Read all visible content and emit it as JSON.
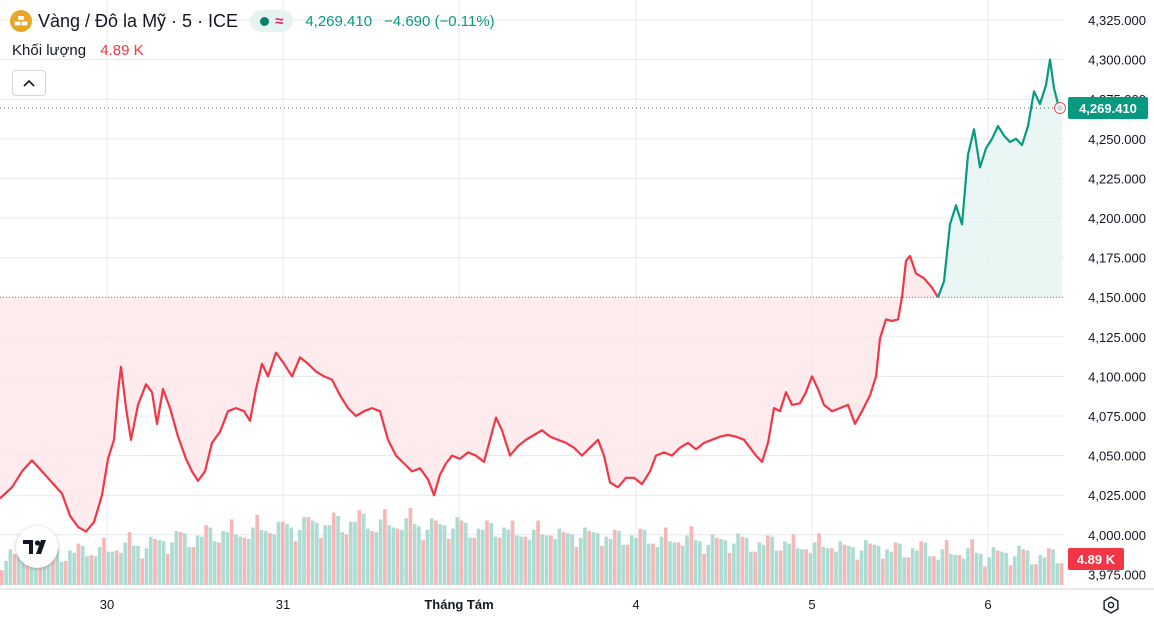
{
  "header": {
    "title": "Vàng / Đô la Mỹ · 5 · ICE",
    "price": "4,269.410",
    "change": "−4.690 (−0.11%)",
    "status_symbol": "≈"
  },
  "volume_legend": {
    "label": "Khối lượng",
    "value": "4.89 K"
  },
  "icons": {
    "symbol": "gold-bars-icon",
    "collapse": "chevron-up-icon",
    "logo": "tradingview-logo",
    "settings": "settings-icon"
  },
  "colors": {
    "up": "#089981",
    "down": "#f23645",
    "area_up": "#e6f4f1",
    "area_down": "#fde7ea",
    "grid": "#e6e8ee"
  },
  "chart_data": {
    "type": "line",
    "baseline": 4150,
    "ylim": [
      3965,
      4332
    ],
    "y_ticks": [
      "4,325.000",
      "4,300.000",
      "4,275.000",
      "4,250.000",
      "4,225.000",
      "4,200.000",
      "4,175.000",
      "4,150.000",
      "4,125.000",
      "4,100.000",
      "4,075.000",
      "4,050.000",
      "4,025.000",
      "4,000.000",
      "3,975.000"
    ],
    "x_ticks": [
      "30",
      "31",
      "Tháng Tám",
      "4",
      "5",
      "6"
    ],
    "last_price": 4269.41,
    "last_price_label": "4,269.410",
    "volume_label": "4.89 K",
    "series": [
      {
        "points": [
          [
            0,
            4023
          ],
          [
            12,
            4030
          ],
          [
            22,
            4040
          ],
          [
            32,
            4047
          ],
          [
            42,
            4040
          ],
          [
            52,
            4033
          ],
          [
            62,
            4026
          ],
          [
            70,
            4012
          ],
          [
            78,
            4005
          ],
          [
            86,
            4002
          ],
          [
            94,
            4008
          ],
          [
            102,
            4025
          ],
          [
            108,
            4048
          ],
          [
            114,
            4060
          ],
          [
            118,
            4090
          ],
          [
            121,
            4106
          ],
          [
            126,
            4080
          ],
          [
            131,
            4060
          ],
          [
            138,
            4082
          ],
          [
            146,
            4095
          ],
          [
            152,
            4090
          ],
          [
            157,
            4070
          ],
          [
            163,
            4092
          ],
          [
            170,
            4080
          ],
          [
            178,
            4062
          ],
          [
            186,
            4048
          ],
          [
            192,
            4040
          ],
          [
            198,
            4034
          ],
          [
            205,
            4040
          ],
          [
            212,
            4058
          ],
          [
            220,
            4065
          ],
          [
            228,
            4078
          ],
          [
            236,
            4080
          ],
          [
            244,
            4078
          ],
          [
            250,
            4072
          ],
          [
            256,
            4092
          ],
          [
            262,
            4108
          ],
          [
            268,
            4100
          ],
          [
            276,
            4115
          ],
          [
            284,
            4108
          ],
          [
            292,
            4100
          ],
          [
            300,
            4112
          ],
          [
            308,
            4108
          ],
          [
            316,
            4103
          ],
          [
            324,
            4100
          ],
          [
            332,
            4098
          ],
          [
            340,
            4088
          ],
          [
            348,
            4080
          ],
          [
            356,
            4075
          ],
          [
            364,
            4078
          ],
          [
            372,
            4080
          ],
          [
            380,
            4078
          ],
          [
            388,
            4060
          ],
          [
            396,
            4050
          ],
          [
            404,
            4045
          ],
          [
            412,
            4040
          ],
          [
            420,
            4042
          ],
          [
            428,
            4035
          ],
          [
            434,
            4025
          ],
          [
            440,
            4038
          ],
          [
            446,
            4045
          ],
          [
            452,
            4050
          ],
          [
            460,
            4048
          ],
          [
            468,
            4052
          ],
          [
            476,
            4050
          ],
          [
            484,
            4046
          ],
          [
            490,
            4060
          ],
          [
            496,
            4074
          ],
          [
            502,
            4066
          ],
          [
            510,
            4050
          ],
          [
            518,
            4056
          ],
          [
            526,
            4060
          ],
          [
            534,
            4063
          ],
          [
            542,
            4066
          ],
          [
            550,
            4062
          ],
          [
            558,
            4060
          ],
          [
            566,
            4058
          ],
          [
            574,
            4055
          ],
          [
            582,
            4050
          ],
          [
            590,
            4055
          ],
          [
            598,
            4060
          ],
          [
            604,
            4050
          ],
          [
            610,
            4033
          ],
          [
            618,
            4030
          ],
          [
            626,
            4036
          ],
          [
            634,
            4036
          ],
          [
            642,
            4032
          ],
          [
            650,
            4040
          ],
          [
            656,
            4050
          ],
          [
            664,
            4052
          ],
          [
            672,
            4050
          ],
          [
            680,
            4055
          ],
          [
            688,
            4058
          ],
          [
            696,
            4054
          ],
          [
            704,
            4058
          ],
          [
            712,
            4060
          ],
          [
            720,
            4062
          ],
          [
            728,
            4063
          ],
          [
            736,
            4062
          ],
          [
            744,
            4060
          ],
          [
            750,
            4055
          ],
          [
            756,
            4050
          ],
          [
            762,
            4046
          ],
          [
            768,
            4058
          ],
          [
            774,
            4080
          ],
          [
            780,
            4078
          ],
          [
            786,
            4090
          ],
          [
            792,
            4082
          ],
          [
            800,
            4083
          ],
          [
            806,
            4090
          ],
          [
            812,
            4100
          ],
          [
            818,
            4092
          ],
          [
            824,
            4082
          ],
          [
            832,
            4078
          ],
          [
            840,
            4080
          ],
          [
            848,
            4082
          ],
          [
            855,
            4070
          ],
          [
            862,
            4078
          ],
          [
            870,
            4088
          ],
          [
            876,
            4100
          ],
          [
            880,
            4124
          ],
          [
            886,
            4136
          ],
          [
            892,
            4135
          ],
          [
            898,
            4136
          ],
          [
            902,
            4150
          ],
          [
            906,
            4173
          ],
          [
            910,
            4176
          ],
          [
            916,
            4165
          ],
          [
            924,
            4162
          ],
          [
            932,
            4156
          ],
          [
            938,
            4150
          ]
        ]
      },
      {
        "points": [
          [
            938,
            4150
          ],
          [
            944,
            4160
          ],
          [
            950,
            4196
          ],
          [
            956,
            4208
          ],
          [
            962,
            4196
          ],
          [
            968,
            4240
          ],
          [
            974,
            4256
          ],
          [
            980,
            4232
          ],
          [
            986,
            4244
          ],
          [
            992,
            4250
          ],
          [
            998,
            4258
          ],
          [
            1004,
            4252
          ],
          [
            1010,
            4248
          ],
          [
            1016,
            4250
          ],
          [
            1022,
            4246
          ],
          [
            1028,
            4258
          ],
          [
            1034,
            4280
          ],
          [
            1040,
            4272
          ],
          [
            1046,
            4284
          ],
          [
            1050,
            4300
          ],
          [
            1054,
            4282
          ],
          [
            1058,
            4272
          ],
          [
            1062,
            4269.41
          ]
        ]
      }
    ],
    "volume_bars": [
      18,
      22,
      28,
      31,
      26,
      24,
      30,
      27,
      22,
      20,
      25,
      29,
      33,
      28,
      24,
      21,
      26,
      31,
      35,
      29,
      27,
      24,
      30,
      34,
      38,
      33,
      29,
      26,
      31,
      36,
      41,
      36,
      32,
      28,
      33,
      39,
      44,
      39,
      34,
      30,
      36,
      42,
      48,
      43,
      38,
      34,
      40,
      46,
      52,
      46,
      41,
      36,
      42,
      48,
      55,
      49,
      43,
      38,
      44,
      50,
      57,
      51,
      46,
      40,
      46,
      53,
      60,
      54,
      47,
      42,
      48,
      55,
      62,
      55,
      49,
      43,
      50,
      57,
      64,
      57,
      50,
      44,
      51,
      58,
      64,
      57,
      51,
      45,
      51,
      58,
      63,
      56,
      50,
      45,
      51,
      57,
      62,
      55,
      49,
      44,
      49,
      55,
      60,
      53,
      48,
      43,
      48,
      54,
      58,
      52,
      46,
      42,
      46,
      52,
      56,
      50,
      45,
      40,
      45,
      50,
      54,
      48,
      43,
      39,
      43,
      48,
      52,
      47,
      42,
      38,
      42,
      47,
      51,
      46,
      41,
      37,
      41,
      46,
      50,
      45,
      40,
      36,
      40,
      45,
      49,
      44,
      39,
      35,
      39,
      44,
      48,
      43,
      38,
      34,
      38,
      43,
      47,
      42,
      37,
      33,
      37,
      42,
      46,
      41,
      36,
      32,
      36,
      41,
      45,
      40,
      35,
      31,
      35,
      40,
      44,
      39,
      34,
      30,
      34,
      39,
      43,
      38,
      33,
      29,
      33,
      38,
      42,
      37,
      32,
      28,
      32,
      37,
      41,
      36,
      31,
      27,
      31,
      36,
      40,
      35,
      30,
      26,
      30,
      35,
      39,
      34,
      29,
      25,
      29,
      34,
      38,
      33,
      28,
      24,
      28,
      33,
      37,
      32,
      27,
      23,
      27,
      32,
      36,
      31,
      26,
      22,
      26,
      31,
      35,
      30,
      25,
      21,
      25,
      30,
      34,
      29,
      24,
      20,
      24,
      29,
      33,
      28,
      23,
      19,
      23,
      28,
      32,
      27,
      22,
      18
    ]
  }
}
